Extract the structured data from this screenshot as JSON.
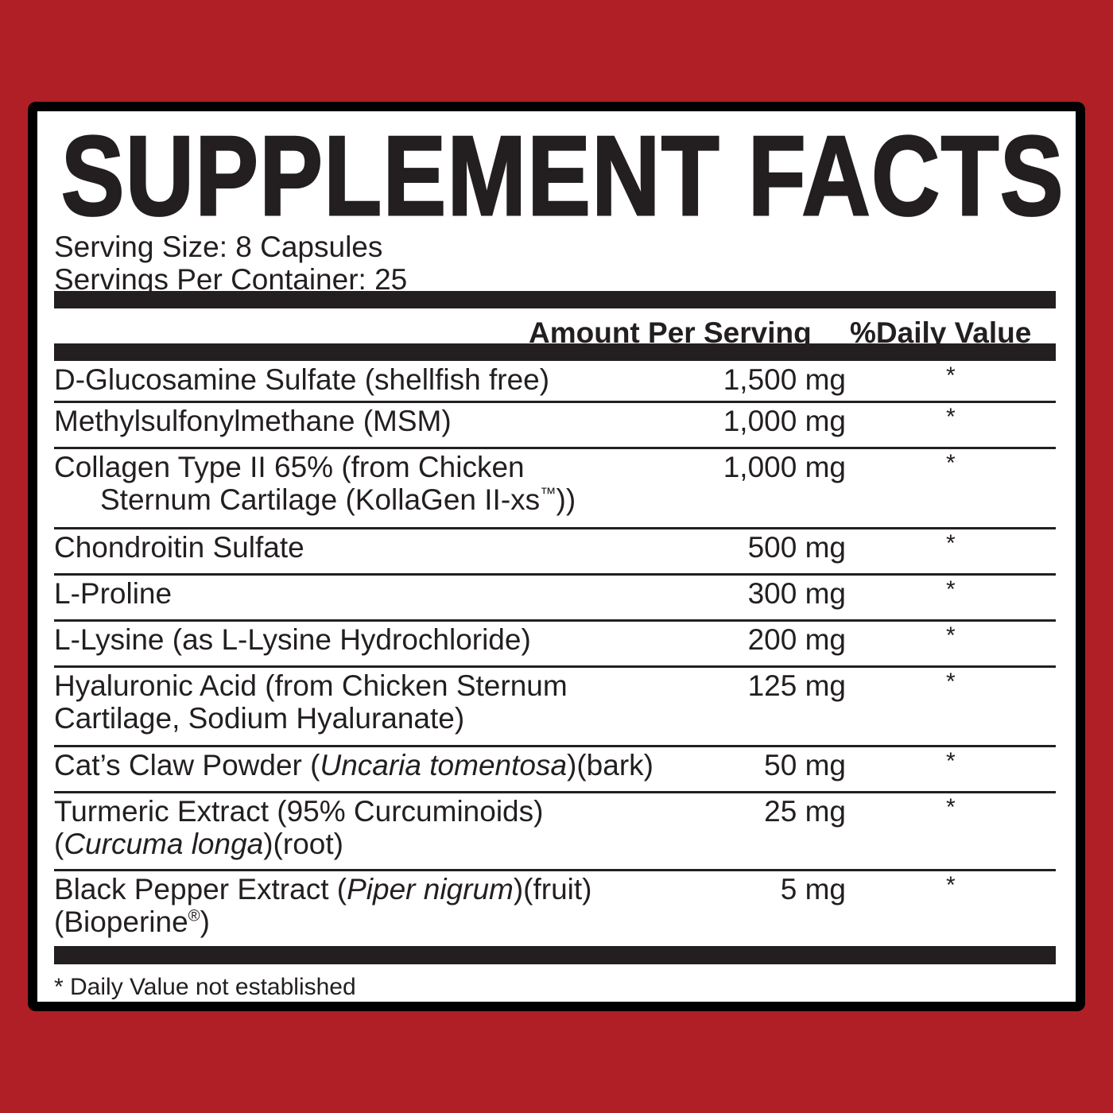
{
  "title": "SUPPLEMENT FACTS",
  "serving_size": "Serving Size: 8 Capsules",
  "servings_per_container": "Servings Per Container: 25",
  "header": {
    "amount": "Amount Per Serving",
    "daily_value": "%Daily Value"
  },
  "rows": [
    {
      "lines": [
        [
          {
            "t": "D-Glucosamine Sulfate (shellfish free)"
          }
        ]
      ],
      "amount": "1,500 mg",
      "dv": "*"
    },
    {
      "lines": [
        [
          {
            "t": "Methylsulfonylmethane (MSM)"
          }
        ]
      ],
      "amount": "1,000 mg",
      "dv": "*"
    },
    {
      "lines": [
        [
          {
            "t": "Collagen Type II 65% (from Chicken"
          }
        ],
        [
          {
            "t": "Sternum Cartilage (KollaGen II-xs"
          },
          {
            "t": "™",
            "sup": true
          },
          {
            "t": "))"
          }
        ]
      ],
      "indent_second": true,
      "amount": "1,000 mg",
      "dv": "*"
    },
    {
      "lines": [
        [
          {
            "t": "Chondroitin Sulfate"
          }
        ]
      ],
      "amount": "500 mg",
      "dv": "*"
    },
    {
      "lines": [
        [
          {
            "t": "L-Proline"
          }
        ]
      ],
      "amount": "300 mg",
      "dv": "*"
    },
    {
      "lines": [
        [
          {
            "t": "L-Lysine (as L-Lysine Hydrochloride)"
          }
        ]
      ],
      "amount": "200 mg",
      "dv": "*"
    },
    {
      "lines": [
        [
          {
            "t": "Hyaluronic Acid (from Chicken Sternum"
          }
        ],
        [
          {
            "t": "Cartilage, Sodium Hyaluranate)"
          }
        ]
      ],
      "amount": "125 mg",
      "dv": "*"
    },
    {
      "lines": [
        [
          {
            "t": "Cat’s Claw Powder ("
          },
          {
            "t": "Uncaria tomentosa",
            "i": true
          },
          {
            "t": ")(bark)"
          }
        ]
      ],
      "amount": "50 mg",
      "dv": "*"
    },
    {
      "lines": [
        [
          {
            "t": "Turmeric Extract (95% Curcuminoids)"
          }
        ],
        [
          {
            "t": "("
          },
          {
            "t": "Curcuma longa",
            "i": true
          },
          {
            "t": ")(root)"
          }
        ]
      ],
      "amount": "25 mg",
      "dv": "*"
    },
    {
      "lines": [
        [
          {
            "t": "Black Pepper Extract ("
          },
          {
            "t": "Piper nigrum",
            "i": true
          },
          {
            "t": ")(fruit)"
          }
        ],
        [
          {
            "t": "(Bioperine"
          },
          {
            "t": "®",
            "sup": true
          },
          {
            "t": ")"
          }
        ]
      ],
      "amount": "5 mg",
      "dv": "*"
    }
  ],
  "footnote": "* Daily Value not established",
  "colors": {
    "background": "#b01f26",
    "border": "#000000",
    "text": "#231f20"
  }
}
